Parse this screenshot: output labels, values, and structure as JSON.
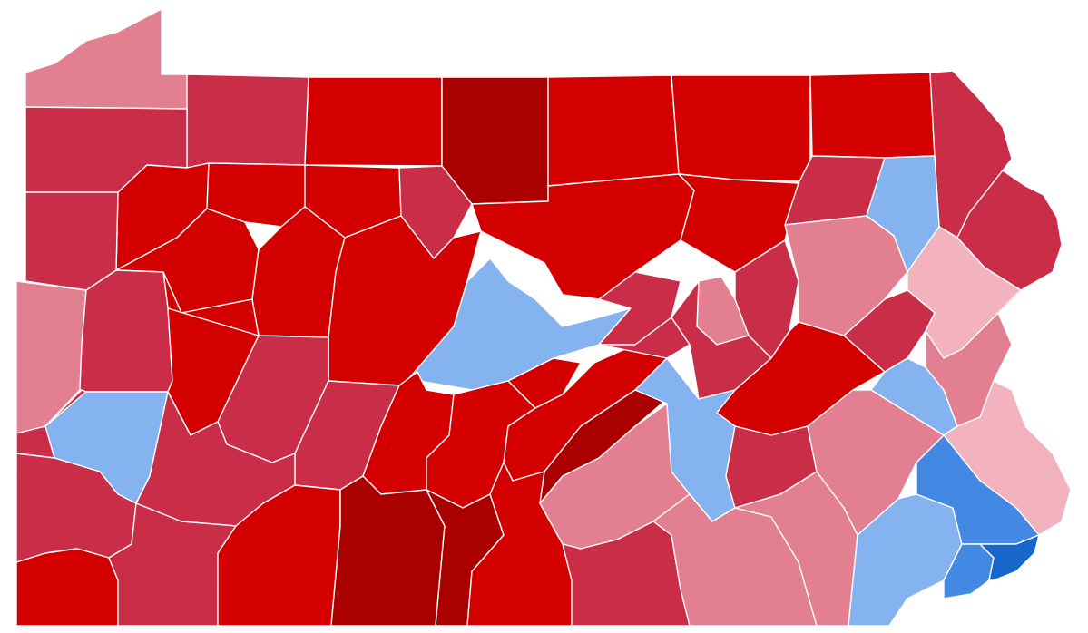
{
  "palette": {
    "r5": "#aa0000",
    "r4": "#d40000",
    "r3": "#c92d48",
    "r2": "#e27f90",
    "r1": "#f2b3be",
    "d2": "#84b3f0",
    "d3": "#4389e3",
    "d4": "#1666cb"
  },
  "counties": [
    {
      "id": "erie",
      "shade": "r2"
    },
    {
      "id": "warren",
      "shade": "r3"
    },
    {
      "id": "mckean",
      "shade": "r4"
    },
    {
      "id": "potter",
      "shade": "r5"
    },
    {
      "id": "tioga",
      "shade": "r4"
    },
    {
      "id": "bradford",
      "shade": "r4"
    },
    {
      "id": "susquehanna",
      "shade": "r4"
    },
    {
      "id": "wayne",
      "shade": "r3"
    },
    {
      "id": "crawford",
      "shade": "r3"
    },
    {
      "id": "forest",
      "shade": "r4"
    },
    {
      "id": "elk",
      "shade": "r4"
    },
    {
      "id": "cameron",
      "shade": "r4"
    },
    {
      "id": "clinton",
      "shade": "r3"
    },
    {
      "id": "lycoming",
      "shade": "r4"
    },
    {
      "id": "sullivan",
      "shade": "r4"
    },
    {
      "id": "wyoming",
      "shade": "r3"
    },
    {
      "id": "lackawanna",
      "shade": "d2"
    },
    {
      "id": "pike",
      "shade": "r3"
    },
    {
      "id": "mercer",
      "shade": "r3"
    },
    {
      "id": "venango",
      "shade": "r4"
    },
    {
      "id": "clarion",
      "shade": "r4"
    },
    {
      "id": "jefferson",
      "shade": "r4"
    },
    {
      "id": "clearfield",
      "shade": "r4"
    },
    {
      "id": "centre",
      "shade": "d2"
    },
    {
      "id": "union",
      "shade": "r3"
    },
    {
      "id": "montour",
      "shade": "r2"
    },
    {
      "id": "columbia",
      "shade": "r3"
    },
    {
      "id": "luzerne",
      "shade": "r2"
    },
    {
      "id": "monroe",
      "shade": "r1"
    },
    {
      "id": "lawrence",
      "shade": "r2"
    },
    {
      "id": "butler",
      "shade": "r3"
    },
    {
      "id": "armstrong",
      "shade": "r4"
    },
    {
      "id": "indiana",
      "shade": "r3"
    },
    {
      "id": "cambria",
      "shade": "r3"
    },
    {
      "id": "blair",
      "shade": "r4"
    },
    {
      "id": "huntingdon",
      "shade": "r4"
    },
    {
      "id": "mifflin",
      "shade": "r4"
    },
    {
      "id": "juniata",
      "shade": "r4"
    },
    {
      "id": "snyder",
      "shade": "r3"
    },
    {
      "id": "northumberland",
      "shade": "r3"
    },
    {
      "id": "schuylkill",
      "shade": "r4"
    },
    {
      "id": "carbon",
      "shade": "r3"
    },
    {
      "id": "lehigh",
      "shade": "d2"
    },
    {
      "id": "northampton",
      "shade": "r2"
    },
    {
      "id": "beaver",
      "shade": "r3"
    },
    {
      "id": "allegheny",
      "shade": "d2"
    },
    {
      "id": "westmoreland",
      "shade": "r3"
    },
    {
      "id": "washington",
      "shade": "r3"
    },
    {
      "id": "greene",
      "shade": "r4"
    },
    {
      "id": "fayette",
      "shade": "r3"
    },
    {
      "id": "somerset",
      "shade": "r4"
    },
    {
      "id": "bedford",
      "shade": "r5"
    },
    {
      "id": "fulton",
      "shade": "r5"
    },
    {
      "id": "franklin",
      "shade": "r4"
    },
    {
      "id": "perry",
      "shade": "r5"
    },
    {
      "id": "cumberland",
      "shade": "r2"
    },
    {
      "id": "dauphin",
      "shade": "d2"
    },
    {
      "id": "lebanon",
      "shade": "r3"
    },
    {
      "id": "adams",
      "shade": "r3"
    },
    {
      "id": "york",
      "shade": "r2"
    },
    {
      "id": "lancaster",
      "shade": "r2"
    },
    {
      "id": "berks",
      "shade": "r2"
    },
    {
      "id": "bucks",
      "shade": "r1"
    },
    {
      "id": "chester",
      "shade": "d2"
    },
    {
      "id": "montgomery",
      "shade": "d3"
    },
    {
      "id": "delaware",
      "shade": "d3"
    },
    {
      "id": "philadelphia",
      "shade": "d4"
    }
  ]
}
